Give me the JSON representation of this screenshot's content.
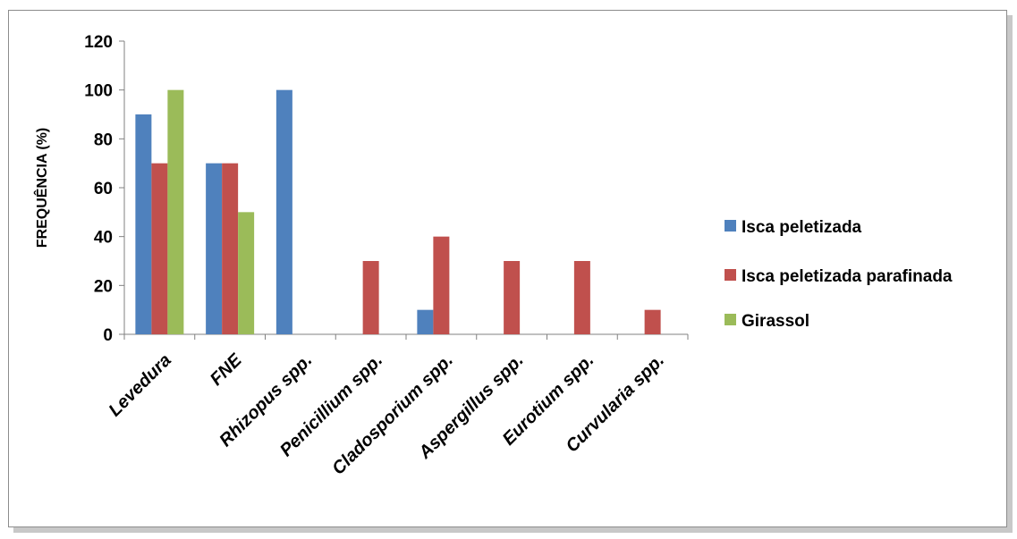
{
  "chart_data": {
    "type": "bar",
    "title": "",
    "xlabel": "",
    "ylabel": "FREQUÊNCIA (%)",
    "ylim": [
      0,
      120
    ],
    "yticks": [
      0,
      20,
      40,
      60,
      80,
      100,
      120
    ],
    "grid": false,
    "legend_position": "right",
    "categories": [
      "Levedura",
      "FNE",
      "Rhizopus spp.",
      "Penicillium spp.",
      "Cladosporium spp.",
      "Aspergillus spp.",
      "Eurotium spp.",
      "Curvularia spp."
    ],
    "series": [
      {
        "name": "Isca peletizada",
        "color": "#4f81bd",
        "values": [
          90,
          70,
          100,
          0,
          10,
          0,
          0,
          0
        ]
      },
      {
        "name": "Isca peletizada parafinada",
        "color": "#c0504d",
        "values": [
          70,
          70,
          0,
          30,
          40,
          30,
          30,
          10
        ]
      },
      {
        "name": "Girassol",
        "color": "#9bbb59",
        "values": [
          100,
          50,
          0,
          0,
          0,
          0,
          0,
          0
        ]
      }
    ]
  }
}
